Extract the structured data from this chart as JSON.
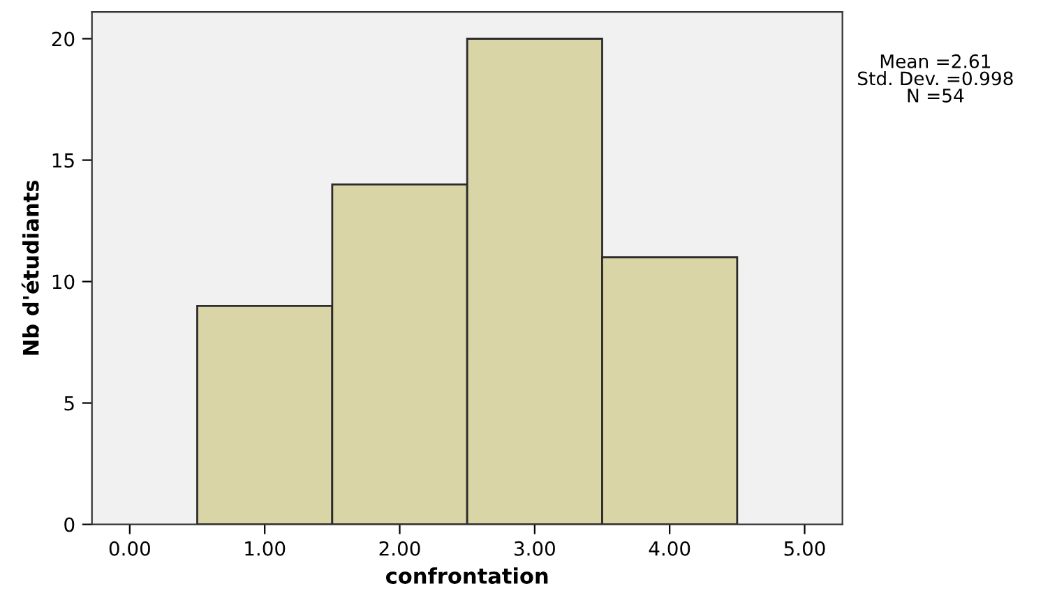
{
  "chart_data": {
    "type": "histogram",
    "xlabel": "confrontation",
    "ylabel": "Nb d'étudiants",
    "bins": [
      0.5,
      1.5,
      2.5,
      3.5,
      4.5
    ],
    "values": [
      9,
      14,
      20,
      11
    ],
    "color": "#d9d5a6",
    "xlim": [
      -0.28,
      5.28
    ],
    "ylim": [
      0,
      21.1
    ],
    "xticks": [
      {
        "value": 0,
        "label": "0.00"
      },
      {
        "value": 1,
        "label": "1.00"
      },
      {
        "value": 2,
        "label": "2.00"
      },
      {
        "value": 3,
        "label": "3.00"
      },
      {
        "value": 4,
        "label": "4.00"
      },
      {
        "value": 5,
        "label": "5.00"
      }
    ],
    "yticks": [
      0,
      5,
      10,
      15,
      20
    ],
    "grid": false,
    "annotations": [
      "Mean =2.61\nStd. Dev. =0.998\nN =54"
    ]
  }
}
